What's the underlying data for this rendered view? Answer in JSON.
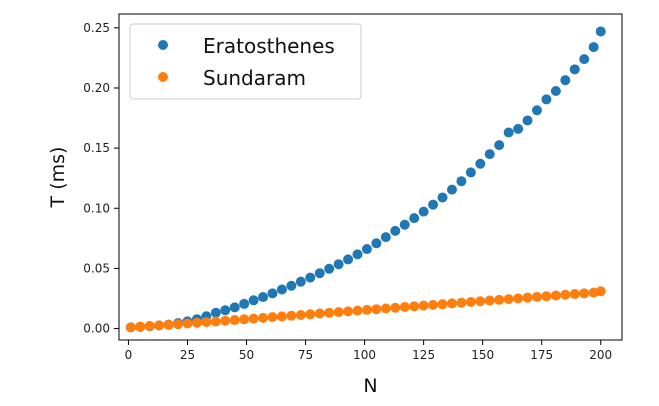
{
  "chart_data": {
    "type": "scatter",
    "xlabel": "N",
    "ylabel": "T (ms)",
    "xlim": [
      -4,
      209
    ],
    "ylim": [
      -0.0095,
      0.2615
    ],
    "x_ticks": [
      0,
      25,
      50,
      75,
      100,
      125,
      150,
      175,
      200
    ],
    "x_tick_labels": [
      "0",
      "25",
      "50",
      "75",
      "100",
      "125",
      "150",
      "175",
      "200"
    ],
    "y_ticks": [
      0.0,
      0.05,
      0.1,
      0.15,
      0.2,
      0.25
    ],
    "y_tick_labels": [
      "0.00",
      "0.05",
      "0.10",
      "0.15",
      "0.20",
      "0.25"
    ],
    "grid": false,
    "legend_position": "upper-left",
    "series": [
      {
        "name": "Eratosthenes",
        "color": "#1f77b4",
        "x": [
          1,
          5,
          9,
          13,
          17,
          21,
          25,
          29,
          33,
          37,
          41,
          45,
          49,
          53,
          57,
          61,
          65,
          69,
          73,
          77,
          81,
          85,
          89,
          93,
          97,
          101,
          105,
          109,
          113,
          117,
          121,
          125,
          129,
          133,
          137,
          141,
          145,
          149,
          153,
          157,
          161,
          165,
          169,
          173,
          177,
          181,
          185,
          189,
          193,
          197,
          200
        ],
        "y": [
          0.001,
          0.0014,
          0.002,
          0.0026,
          0.0033,
          0.0045,
          0.006,
          0.0078,
          0.0102,
          0.0132,
          0.0152,
          0.0176,
          0.0205,
          0.0235,
          0.0262,
          0.0293,
          0.0325,
          0.0356,
          0.039,
          0.0424,
          0.046,
          0.0497,
          0.0535,
          0.0575,
          0.0617,
          0.0661,
          0.0709,
          0.076,
          0.0812,
          0.0863,
          0.0918,
          0.0972,
          0.103,
          0.109,
          0.1155,
          0.1225,
          0.1298,
          0.137,
          0.145,
          0.1525,
          0.163,
          0.166,
          0.173,
          0.1815,
          0.1905,
          0.1975,
          0.2065,
          0.2155,
          0.224,
          0.234,
          0.247
        ]
      },
      {
        "name": "Sundaram",
        "color": "#ff7f0e",
        "x": [
          1,
          5,
          9,
          13,
          17,
          21,
          25,
          29,
          33,
          37,
          41,
          45,
          49,
          53,
          57,
          61,
          65,
          69,
          73,
          77,
          81,
          85,
          89,
          93,
          97,
          101,
          105,
          109,
          113,
          117,
          121,
          125,
          129,
          133,
          137,
          141,
          145,
          149,
          153,
          157,
          161,
          165,
          169,
          173,
          177,
          181,
          185,
          189,
          193,
          197,
          200
        ],
        "y": [
          0.001,
          0.0016,
          0.0021,
          0.0026,
          0.0031,
          0.0036,
          0.0042,
          0.0048,
          0.0054,
          0.0059,
          0.0065,
          0.0071,
          0.0077,
          0.0083,
          0.0089,
          0.0095,
          0.0101,
          0.0107,
          0.0113,
          0.0119,
          0.0125,
          0.0131,
          0.0137,
          0.0143,
          0.0149,
          0.0155,
          0.0161,
          0.0167,
          0.0173,
          0.0179,
          0.0185,
          0.0191,
          0.0197,
          0.0203,
          0.0209,
          0.0215,
          0.0221,
          0.0227,
          0.0233,
          0.0239,
          0.0245,
          0.0251,
          0.0257,
          0.0263,
          0.0269,
          0.0275,
          0.0281,
          0.0287,
          0.0293,
          0.0299,
          0.031
        ]
      }
    ]
  }
}
